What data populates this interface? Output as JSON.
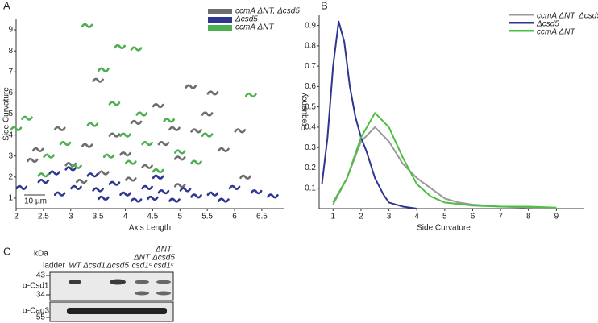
{
  "chart_data": [
    {
      "type": "scatter",
      "panel_label": "A",
      "x_label": "Axis Length",
      "y_label": "Side Curvature",
      "annotation": "10 µm",
      "xlim": [
        2,
        6.9
      ],
      "ylim": [
        0.5,
        9.5
      ],
      "xticks": [
        2,
        2.5,
        3,
        3.5,
        4,
        4.5,
        5,
        5.5,
        6,
        6.5
      ],
      "yticks": [
        1,
        2,
        3,
        4,
        5,
        6,
        7,
        8,
        9
      ],
      "series": [
        {
          "name": "ccmA ΔNT, Δcsd5",
          "color": "#6d6d6d",
          "x": [
            2.4,
            2.8,
            3.0,
            3.3,
            3.5,
            3.6,
            3.8,
            4.0,
            4.2,
            4.4,
            4.6,
            4.7,
            4.9,
            5.0,
            5.2,
            5.3,
            5.5,
            5.6,
            5.8,
            6.1,
            6.2,
            3.2,
            4.1,
            5.0,
            2.3
          ],
          "values": [
            3.3,
            4.3,
            2.6,
            3.5,
            6.6,
            2.2,
            4.0,
            3.1,
            4.6,
            2.5,
            5.4,
            3.6,
            4.3,
            2.9,
            6.3,
            4.2,
            5.0,
            6.0,
            3.3,
            4.2,
            2.0,
            1.8,
            1.9,
            1.6,
            2.8
          ]
        },
        {
          "name": "Δcsd5",
          "color": "#2e368f",
          "x": [
            2.1,
            2.5,
            2.8,
            3.1,
            3.4,
            3.6,
            3.8,
            4.0,
            4.2,
            4.4,
            4.5,
            4.7,
            4.9,
            5.1,
            5.3,
            5.6,
            5.8,
            6.0,
            6.4,
            6.7,
            3.0,
            4.6,
            3.5,
            2.7
          ],
          "values": [
            1.5,
            1.8,
            1.2,
            1.5,
            2.1,
            1.0,
            1.7,
            1.2,
            0.9,
            1.5,
            1.0,
            1.3,
            0.9,
            1.4,
            1.1,
            1.2,
            0.9,
            1.5,
            1.3,
            1.1,
            2.4,
            2.0,
            1.4,
            2.2
          ]
        },
        {
          "name": "ccmA ΔNT",
          "color": "#4caf50",
          "x": [
            2.0,
            2.2,
            2.6,
            2.9,
            3.1,
            3.3,
            3.4,
            3.6,
            3.7,
            3.9,
            4.0,
            4.1,
            4.2,
            4.4,
            4.6,
            4.8,
            5.0,
            5.3,
            5.5,
            6.3,
            2.5,
            3.8,
            4.3
          ],
          "values": [
            4.3,
            4.8,
            3.0,
            3.6,
            2.5,
            9.2,
            4.5,
            7.1,
            3.0,
            8.2,
            4.0,
            2.7,
            8.1,
            3.6,
            2.3,
            4.7,
            3.2,
            2.7,
            4.0,
            5.9,
            2.1,
            5.5,
            5.0
          ]
        }
      ]
    },
    {
      "type": "line",
      "panel_label": "B",
      "x_label": "Side Curvature",
      "y_label": "Frequency",
      "xlim": [
        0.5,
        10
      ],
      "ylim": [
        0,
        0.95
      ],
      "xticks": [
        1,
        2,
        3,
        4,
        5,
        6,
        7,
        8,
        9
      ],
      "yticks": [
        0.1,
        0.2,
        0.3,
        0.4,
        0.5,
        0.6,
        0.7,
        0.8,
        0.9
      ],
      "series": [
        {
          "name": "ccmA ΔNT, Δcsd5",
          "color": "#9a9a9a",
          "x": [
            1.0,
            1.5,
            2.0,
            2.5,
            3.0,
            3.5,
            4.0,
            4.5,
            5.0,
            5.5,
            6.0,
            7.0,
            8.0,
            9.0
          ],
          "values": [
            0.02,
            0.15,
            0.33,
            0.4,
            0.33,
            0.22,
            0.15,
            0.1,
            0.05,
            0.03,
            0.02,
            0.01,
            0.005,
            0.0
          ]
        },
        {
          "name": "Δcsd5",
          "color": "#2e368f",
          "x": [
            0.6,
            0.8,
            1.0,
            1.2,
            1.4,
            1.6,
            1.8,
            2.0,
            2.2,
            2.5,
            2.8,
            3.0,
            3.5,
            4.0
          ],
          "values": [
            0.12,
            0.35,
            0.7,
            0.92,
            0.82,
            0.6,
            0.45,
            0.35,
            0.28,
            0.15,
            0.07,
            0.03,
            0.01,
            0.0
          ]
        },
        {
          "name": "ccmA ΔNT",
          "color": "#4cc040",
          "x": [
            1.0,
            1.5,
            2.0,
            2.5,
            3.0,
            3.5,
            4.0,
            4.5,
            5.0,
            6.0,
            7.0,
            8.0,
            9.0
          ],
          "values": [
            0.03,
            0.15,
            0.35,
            0.47,
            0.4,
            0.25,
            0.12,
            0.06,
            0.03,
            0.015,
            0.01,
            0.01,
            0.005
          ]
        }
      ]
    }
  ],
  "blot": {
    "panel_label": "C",
    "unit": "kDa",
    "lanes": [
      [
        "ladder"
      ],
      [
        "WT"
      ],
      [
        "Δcsd1"
      ],
      [
        "Δcsd5"
      ],
      [
        "ΔNT",
        "csd1ᶜ"
      ],
      [
        "ΔNT",
        "Δcsd5",
        "csd1ᶜ"
      ]
    ],
    "rows": [
      "α-Csd1",
      "α-Cag3"
    ],
    "markers": [
      "43",
      "34",
      "55"
    ]
  }
}
